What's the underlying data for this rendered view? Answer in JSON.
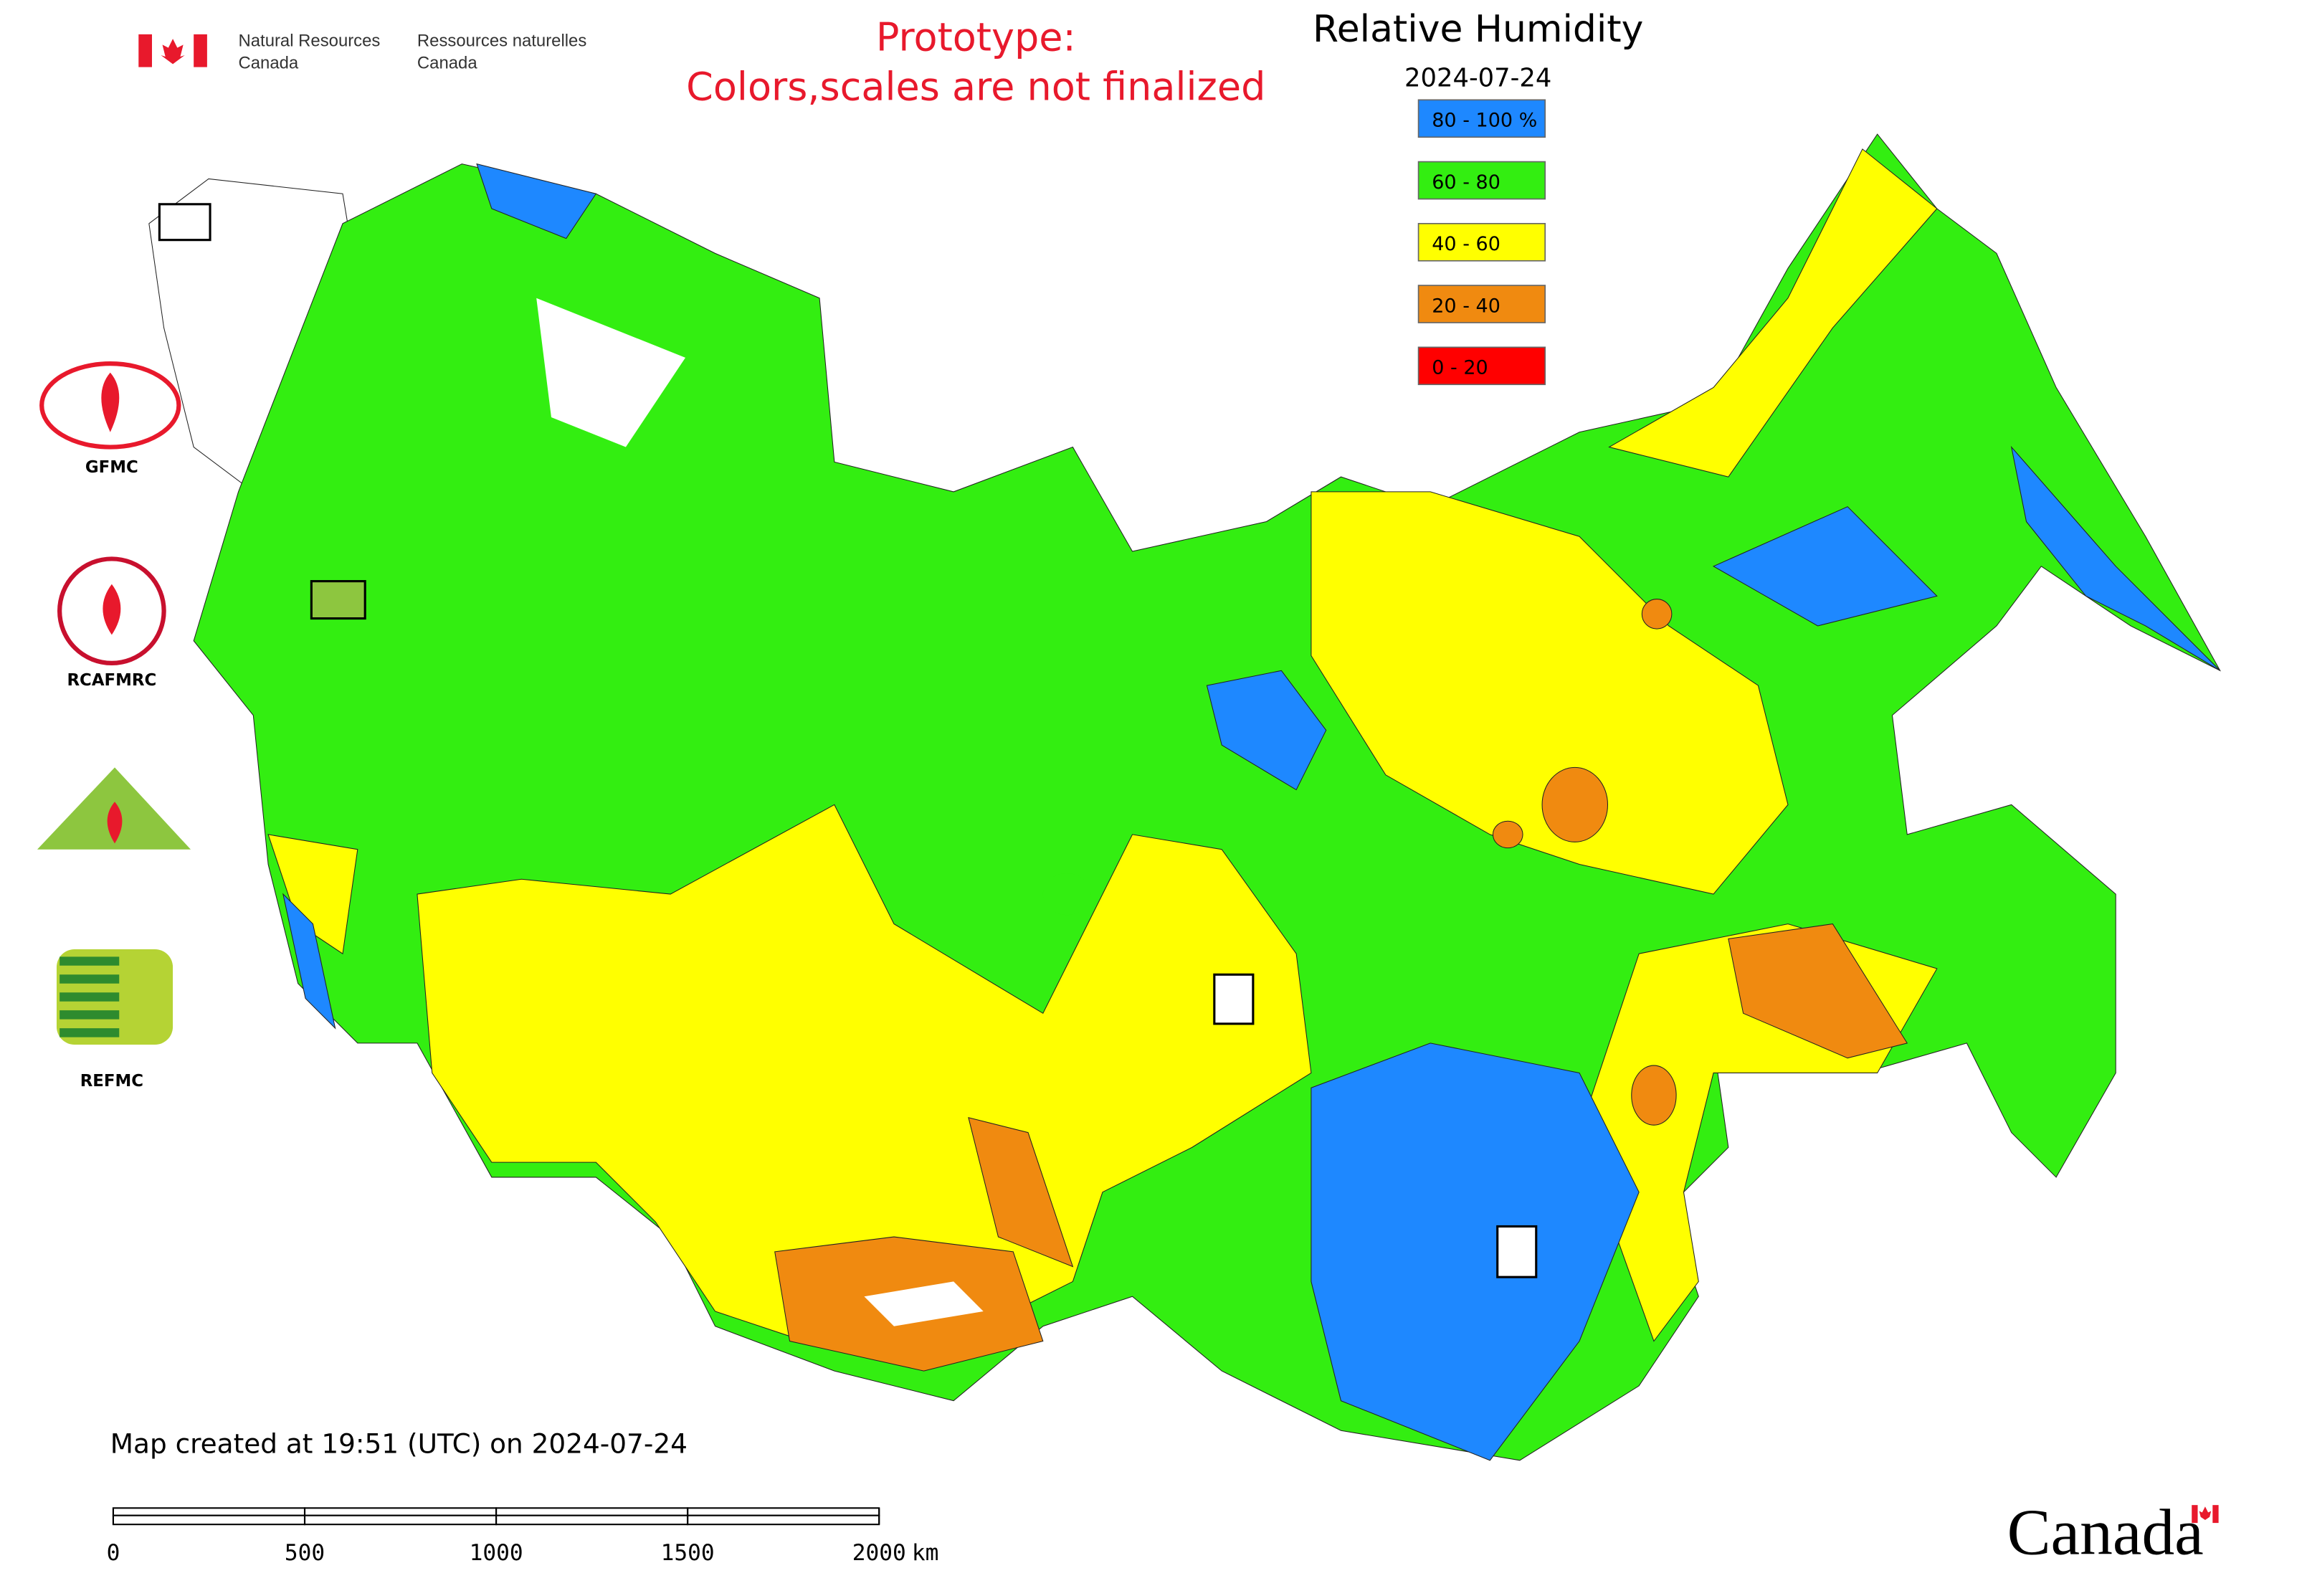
{
  "header": {
    "agency_en": [
      "Natural Resources",
      "Canada"
    ],
    "agency_fr": [
      "Ressources naturelles",
      "Canada"
    ]
  },
  "notice": [
    "Prototype:",
    "Colors,scales are not finalized"
  ],
  "legend": {
    "title": "Relative Humidity",
    "date": "2024-07-24",
    "classes": [
      {
        "label": "80 - 100 %",
        "color": "#1e88ff"
      },
      {
        "label": "60 - 80",
        "color": "#33ee11"
      },
      {
        "label": "40 - 60",
        "color": "#ffff00"
      },
      {
        "label": "20 - 40",
        "color": "#f08a10"
      },
      {
        "label": "0 - 20",
        "color": "#ff0000"
      }
    ]
  },
  "partners": [
    "GFMC",
    "RCAFMRC",
    "REFMC"
  ],
  "caption": "Map created at 19:51 (UTC) on 2024-07-24",
  "scale_bar": {
    "ticks": [
      0,
      500,
      1000,
      1500,
      2000
    ],
    "unit": "km"
  },
  "wordmark": "Canada"
}
